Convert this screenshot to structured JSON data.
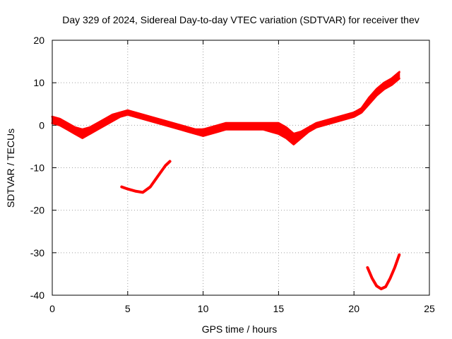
{
  "chart_data": {
    "type": "line",
    "title": "Day 329 of 2024, Sidereal Day-to-day VTEC variation (SDTVAR) for receiver thev",
    "xlabel": "GPS time / hours",
    "ylabel": "SDTVAR / TECUs",
    "xlim": [
      0,
      25
    ],
    "ylim": [
      -40,
      20
    ],
    "xticks": [
      0,
      5,
      10,
      15,
      20,
      25
    ],
    "yticks": [
      -40,
      -30,
      -20,
      -10,
      0,
      10,
      20
    ],
    "grid": true,
    "color": "#ff0000",
    "series": [
      {
        "name": "main-band-upper",
        "x": [
          0,
          0.5,
          1,
          1.5,
          2,
          2.5,
          3,
          3.5,
          4,
          4.5,
          5,
          5.5,
          6,
          6.5,
          7,
          7.5,
          8,
          8.5,
          9,
          9.5,
          10,
          10.5,
          11,
          11.5,
          12,
          12.5,
          13,
          13.5,
          14,
          14.5,
          15,
          15.5,
          16,
          16.5,
          17,
          17.5,
          18,
          18.5,
          19,
          19.5,
          20,
          20.5,
          21,
          21.5,
          22,
          22.5,
          23
        ],
        "y": [
          2,
          1.5,
          0.5,
          -0.5,
          -1,
          -0.5,
          0.5,
          1.5,
          2.5,
          3,
          3.5,
          3,
          2.5,
          2,
          1.5,
          1,
          0.5,
          0,
          -0.5,
          -1,
          -1,
          -0.5,
          0,
          0.5,
          0.5,
          0.5,
          0.5,
          0.5,
          0.5,
          0.5,
          0.5,
          -0.5,
          -2,
          -1.5,
          -0.5,
          0.5,
          1,
          1.5,
          2,
          2.5,
          3,
          4,
          6.5,
          8.5,
          10,
          11,
          12.5
        ]
      },
      {
        "name": "main-band-lower",
        "x": [
          0,
          0.5,
          1,
          1.5,
          2,
          2.5,
          3,
          3.5,
          4,
          4.5,
          5,
          5.5,
          6,
          6.5,
          7,
          7.5,
          8,
          8.5,
          9,
          9.5,
          10,
          10.5,
          11,
          11.5,
          12,
          12.5,
          13,
          13.5,
          14,
          14.5,
          15,
          15.5,
          16,
          16.5,
          17,
          17.5,
          18,
          18.5,
          19,
          19.5,
          20,
          20.5,
          21,
          21.5,
          22,
          22.5,
          23
        ],
        "y": [
          0.5,
          0,
          -1,
          -2,
          -3,
          -2,
          -1,
          0,
          1,
          2,
          2.5,
          2,
          1.5,
          1,
          0.5,
          0,
          -0.5,
          -1,
          -1.5,
          -2,
          -2.5,
          -2,
          -1.5,
          -1,
          -1,
          -1,
          -1,
          -1,
          -1,
          -1.5,
          -2,
          -3,
          -4.5,
          -3,
          -1.5,
          -0.5,
          0,
          0.5,
          1,
          1.5,
          2,
          3,
          5,
          7,
          8.5,
          9.5,
          11
        ]
      },
      {
        "name": "dip-segment",
        "x": [
          4.6,
          5,
          5.5,
          6,
          6.5,
          7,
          7.5,
          7.8
        ],
        "y": [
          -14.5,
          -15,
          -15.5,
          -15.8,
          -14.5,
          -12,
          -9.5,
          -8.5
        ]
      },
      {
        "name": "late-dip-segment",
        "x": [
          20.9,
          21.2,
          21.5,
          21.8,
          22.1,
          22.4,
          22.7,
          23
        ],
        "y": [
          -33.5,
          -36,
          -37.8,
          -38.5,
          -38,
          -36,
          -33.5,
          -30.5
        ]
      }
    ]
  }
}
